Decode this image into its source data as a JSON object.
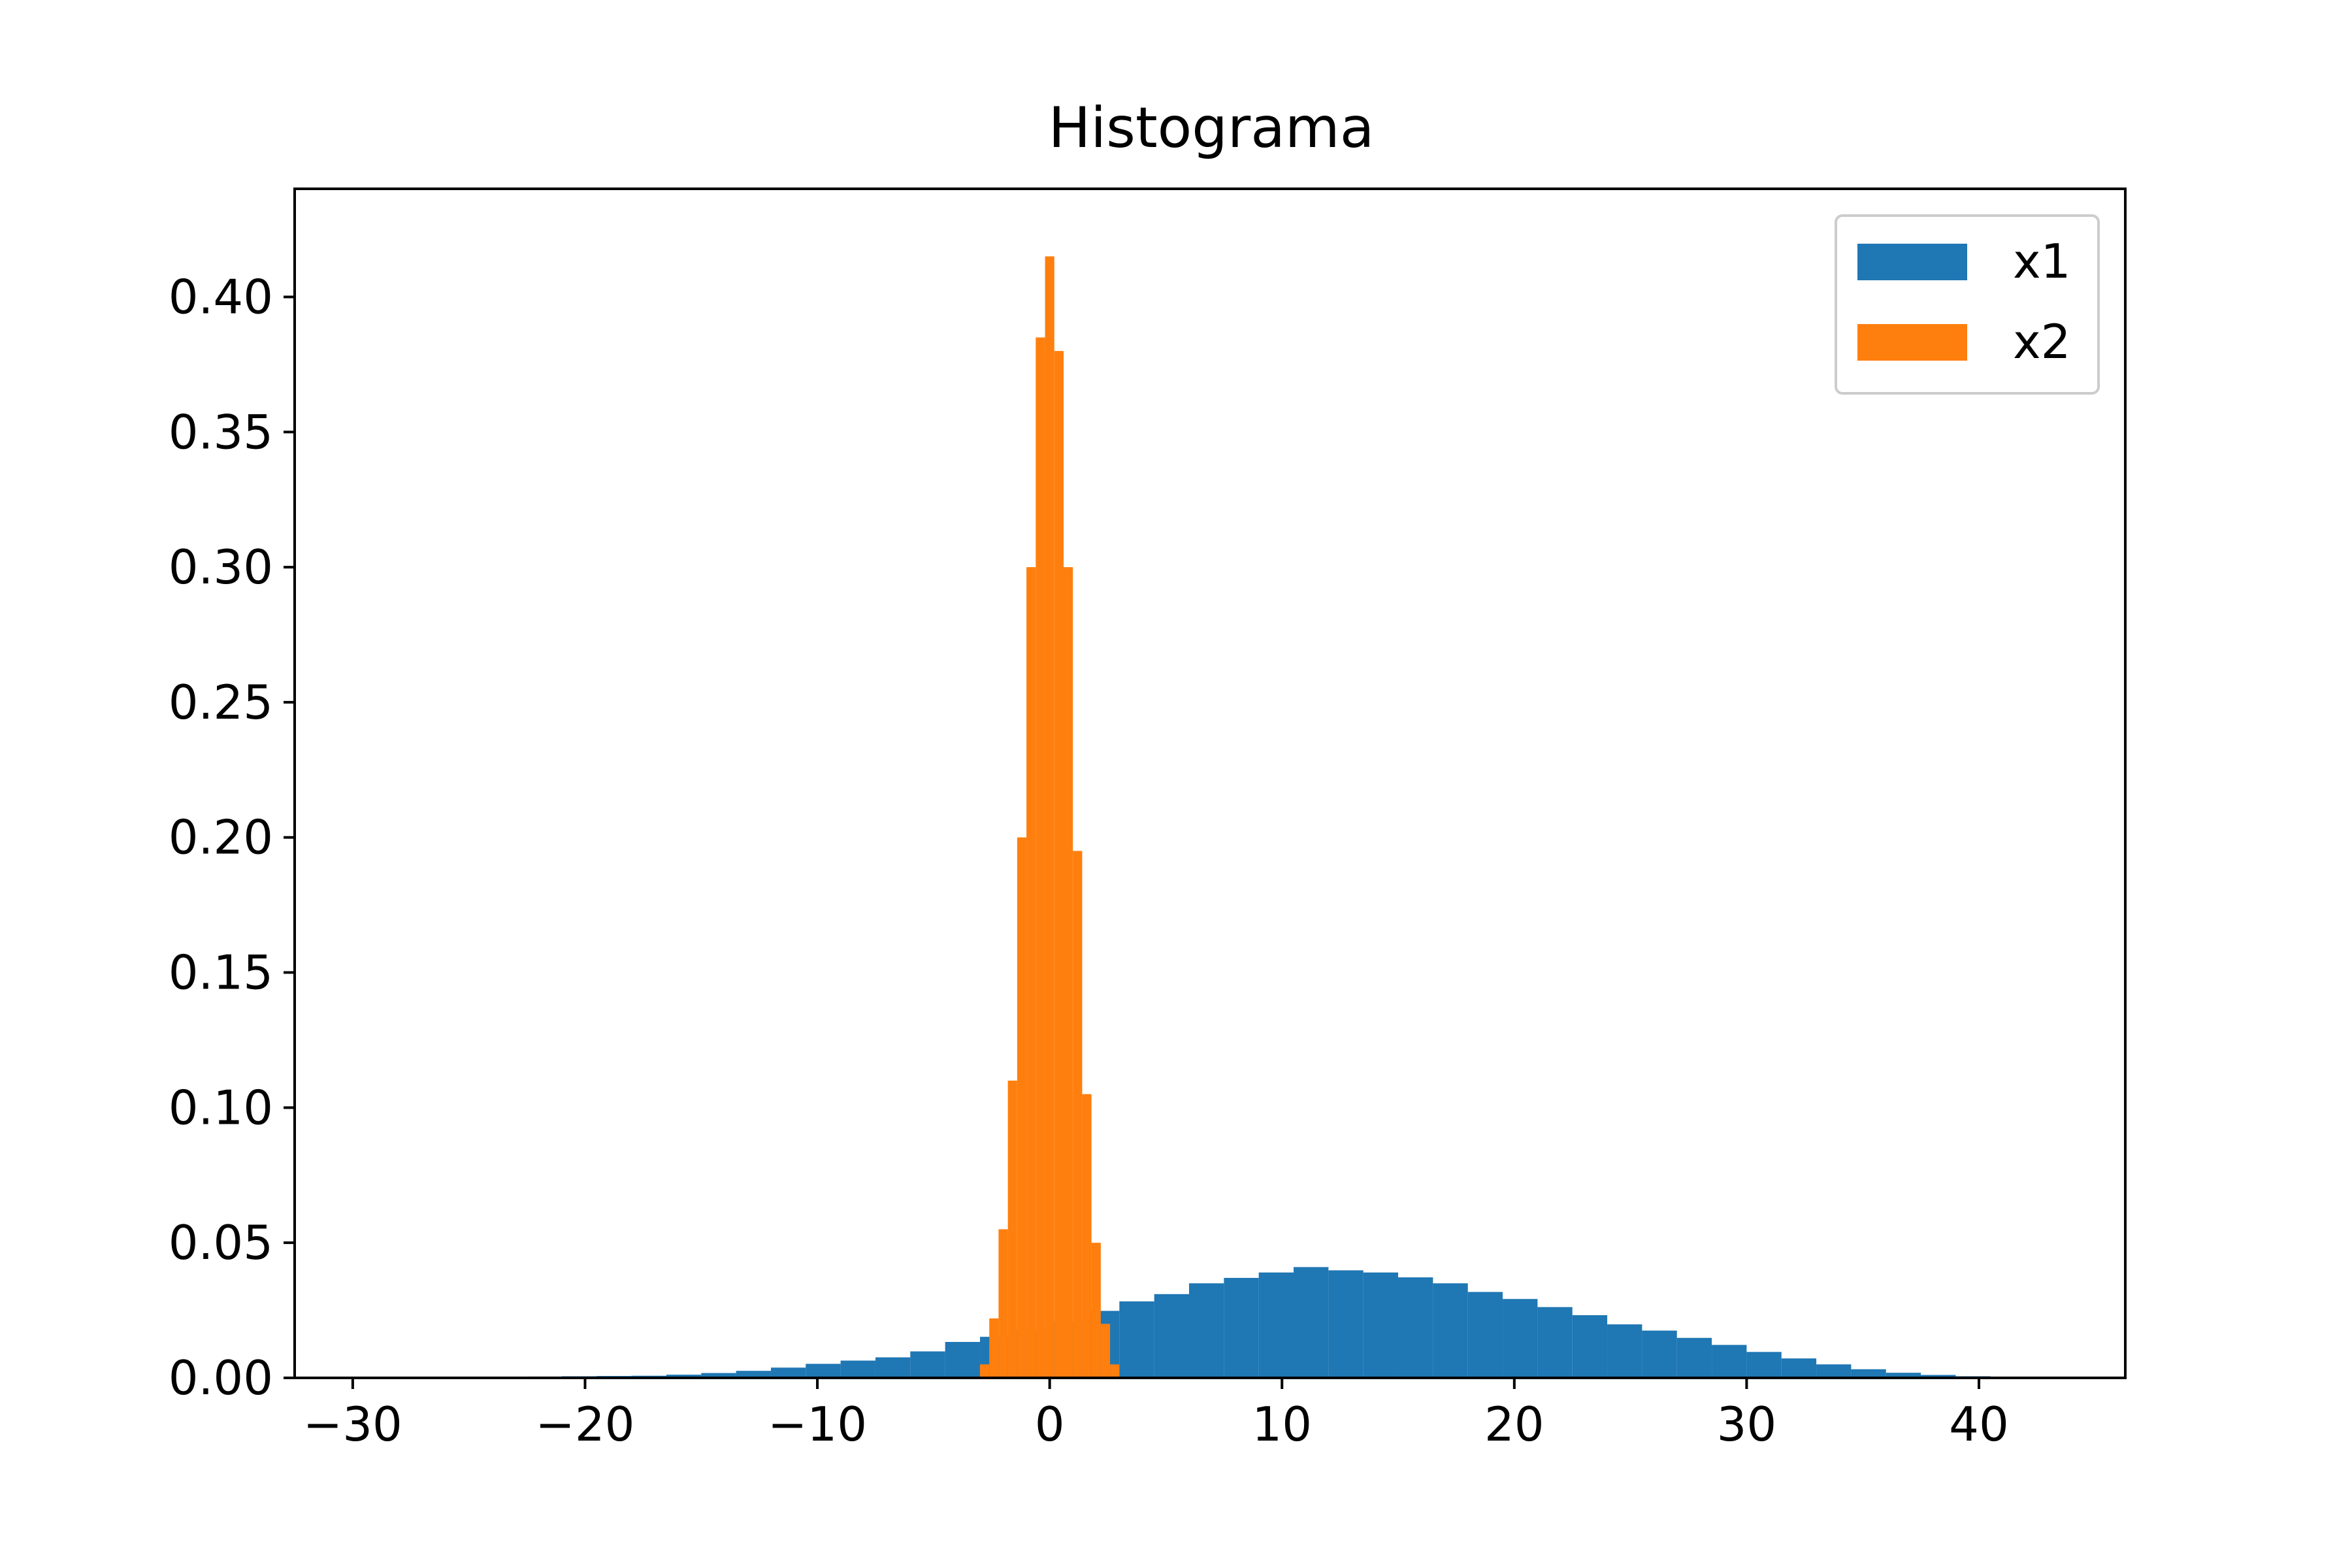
{
  "chart_data": {
    "type": "bar",
    "title": "Histograma",
    "xlabel": "",
    "ylabel": "",
    "xlim": [
      -32.5,
      46.3
    ],
    "ylim": [
      0,
      0.44
    ],
    "xticks": [
      -30,
      -20,
      -10,
      0,
      10,
      20,
      30,
      40
    ],
    "xtick_labels": [
      "−30",
      "−20",
      "−10",
      "0",
      "10",
      "20",
      "30",
      "40"
    ],
    "yticks": [
      0,
      0.05,
      0.1,
      0.15,
      0.2,
      0.25,
      0.3,
      0.35,
      0.4
    ],
    "ytick_labels": [
      "0.00",
      "0.05",
      "0.10",
      "0.15",
      "0.20",
      "0.25",
      "0.30",
      "0.35",
      "0.40"
    ],
    "grid": false,
    "legend_position": "top-right",
    "series": [
      {
        "name": "x1",
        "color": "#1f77b4",
        "bin_edges": [
          -30.0,
          -28.5,
          -27.0,
          -25.5,
          -24.0,
          -22.5,
          -21.0,
          -19.5,
          -18.0,
          -16.5,
          -15.0,
          -13.5,
          -12.0,
          -10.5,
          -9.0,
          -7.5,
          -6.0,
          -4.5,
          -3.0,
          -1.5,
          0.0,
          1.5,
          3.0,
          4.5,
          6.0,
          7.5,
          9.0,
          10.5,
          12.0,
          13.5,
          15.0,
          16.5,
          18.0,
          19.5,
          21.0,
          22.5,
          24.0,
          25.5,
          27.0,
          28.5,
          30.0,
          31.5,
          33.0,
          34.5,
          36.0,
          37.5,
          39.0,
          40.5,
          42.0
        ],
        "values": [
          0.0003,
          0.0003,
          0.0003,
          0.0003,
          0.0004,
          0.0005,
          0.0006,
          0.0007,
          0.0008,
          0.0012,
          0.0018,
          0.0026,
          0.0038,
          0.0052,
          0.0064,
          0.0076,
          0.0098,
          0.0133,
          0.0152,
          0.018,
          0.021,
          0.0248,
          0.0283,
          0.031,
          0.035,
          0.037,
          0.039,
          0.041,
          0.0398,
          0.039,
          0.0372,
          0.035,
          0.0318,
          0.0292,
          0.0262,
          0.0232,
          0.0198,
          0.0175,
          0.0148,
          0.0122,
          0.0096,
          0.0072,
          0.005,
          0.0032,
          0.0019,
          0.0011,
          0.0006,
          0.0004
        ]
      },
      {
        "name": "x2",
        "color": "#ff7f0e",
        "bin_edges": [
          -3.0,
          -2.6,
          -2.2,
          -1.8,
          -1.4,
          -1.0,
          -0.6,
          -0.2,
          0.2,
          0.6,
          1.0,
          1.4,
          1.8,
          2.2,
          2.6,
          3.0
        ],
        "values": [
          0.005,
          0.022,
          0.055,
          0.11,
          0.2,
          0.3,
          0.385,
          0.415,
          0.38,
          0.3,
          0.195,
          0.105,
          0.05,
          0.02,
          0.005
        ]
      }
    ]
  }
}
